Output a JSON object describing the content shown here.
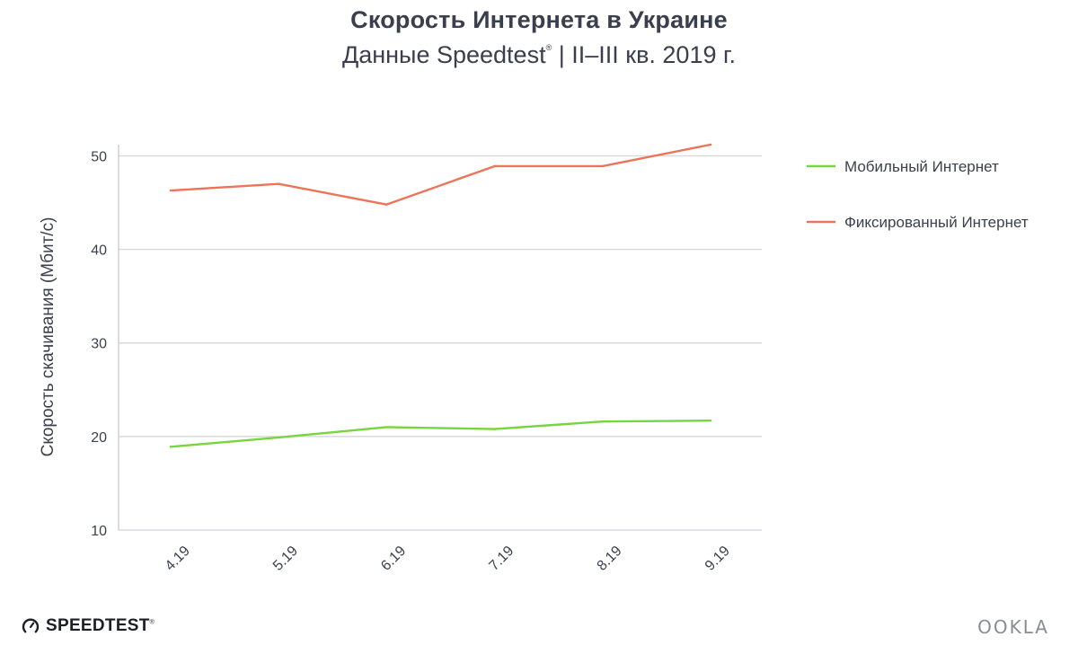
{
  "header": {
    "title": "Скорость Интернета в Украине",
    "subtitle_main": "Данные Speedtest",
    "subtitle_reg": "®",
    "subtitle_tail": " | II–III кв. 2019 г."
  },
  "chart_data": {
    "type": "line",
    "x": [
      "4.19",
      "5.19",
      "6.19",
      "7.19",
      "8.19",
      "9.19"
    ],
    "series": [
      {
        "name": "Мобильный Интернет",
        "color": "#77d53e",
        "values": [
          18.9,
          19.9,
          21.0,
          20.8,
          21.6,
          21.7
        ]
      },
      {
        "name": "Фиксированный Интернет",
        "color": "#ee7459",
        "values": [
          46.3,
          47.0,
          44.8,
          48.9,
          48.9,
          51.2
        ]
      }
    ],
    "ylabel": "Скорость скачивания (Мбит/с)",
    "xlabel": "",
    "ylim": [
      10,
      51.2
    ],
    "yticks": [
      10,
      20,
      30,
      40,
      50
    ],
    "grid": true,
    "legend": "top-right"
  },
  "branding": {
    "left_label": "SPEEDTEST",
    "left_tm": "®",
    "right_label": "OOKLA"
  }
}
